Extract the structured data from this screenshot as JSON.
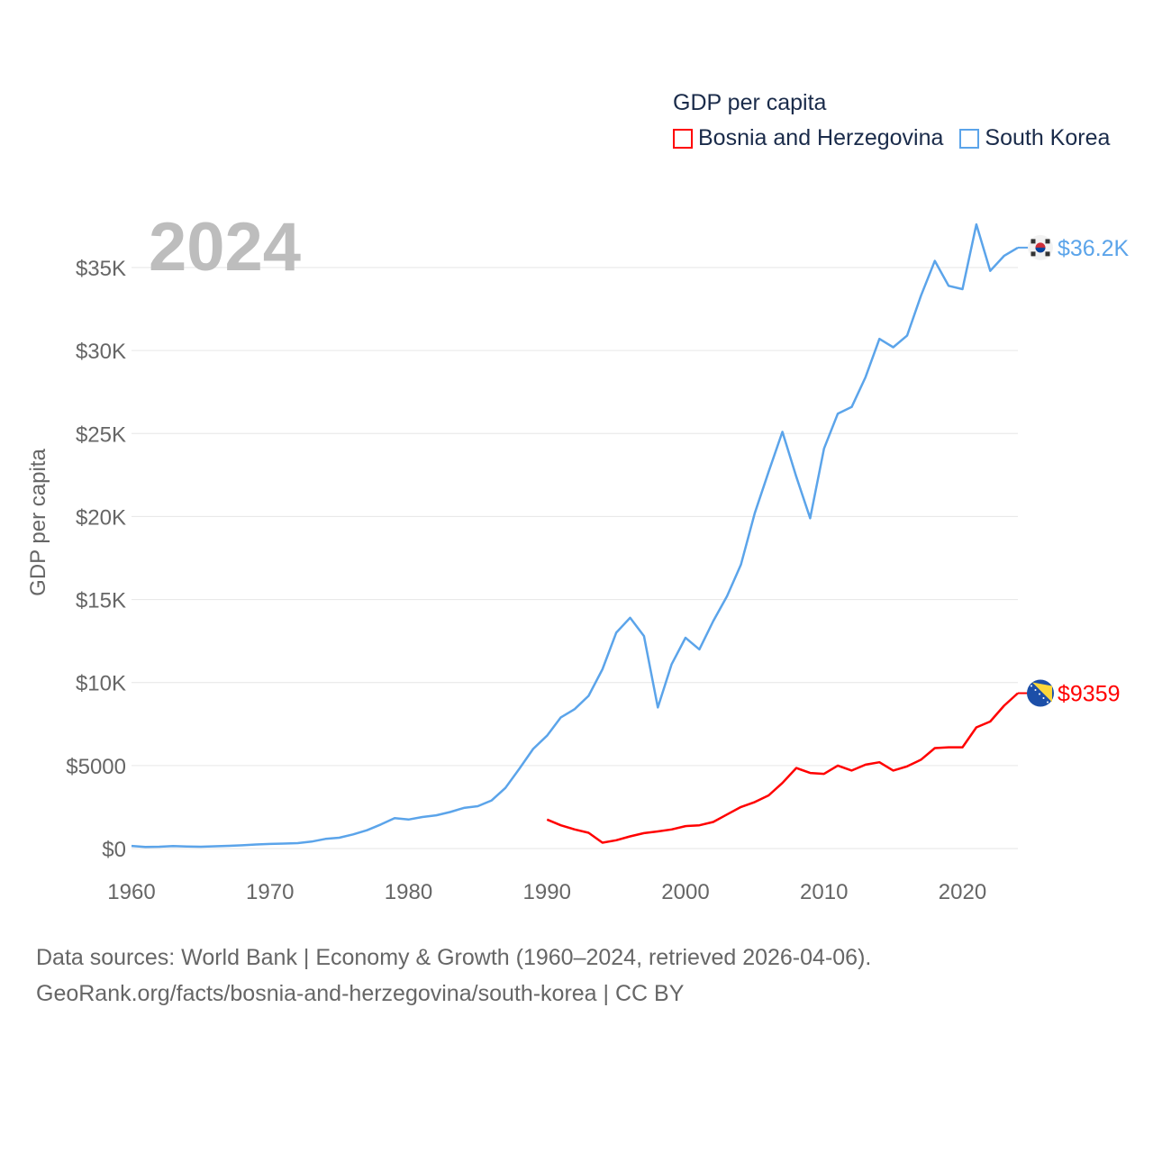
{
  "legend": {
    "title": "GDP per capita",
    "items": [
      {
        "label": "Bosnia and Herzegovina",
        "color": "#ff0000"
      },
      {
        "label": "South Korea",
        "color": "#5ba4ea"
      }
    ]
  },
  "year_label": "2024",
  "footer": {
    "line1": "Data sources: World Bank | Economy & Growth (1960–2024, retrieved 2026-04-06).",
    "line2": "GeoRank.org/facts/bosnia-and-herzegovina/south-korea | CC BY"
  },
  "chart_data": {
    "type": "line",
    "title": "GDP per capita",
    "xlabel": "",
    "ylabel": "GDP per capita",
    "xlim": [
      1960,
      2024
    ],
    "ylim": [
      0,
      35000
    ],
    "grid": true,
    "legend_position": "top-right",
    "x_ticks": [
      "1960",
      "1970",
      "1980",
      "1990",
      "2000",
      "2010",
      "2020"
    ],
    "y_ticks": [
      {
        "value": 0,
        "label": "$0"
      },
      {
        "value": 5000,
        "label": "$5000"
      },
      {
        "value": 10000,
        "label": "$10K"
      },
      {
        "value": 15000,
        "label": "$15K"
      },
      {
        "value": 20000,
        "label": "$20K"
      },
      {
        "value": 25000,
        "label": "$25K"
      },
      {
        "value": 30000,
        "label": "$30K"
      },
      {
        "value": 35000,
        "label": "$35K"
      }
    ],
    "series": [
      {
        "name": "South Korea",
        "color": "#5ba4ea",
        "end_label": "$36.2K",
        "x_start": 1960,
        "values": [
          158,
          94,
          106,
          146,
          123,
          108,
          133,
          161,
          198,
          243,
          279,
          301,
          324,
          420,
          580,
          650,
          850,
          1100,
          1450,
          1830,
          1750,
          1900,
          2000,
          2200,
          2450,
          2550,
          2900,
          3650,
          4800,
          6000,
          6800,
          7900,
          8400,
          9200,
          10800,
          13000,
          13900,
          12800,
          8500,
          11100,
          12700,
          12000,
          13700,
          15200,
          17100,
          20200,
          22700,
          25100,
          22400,
          19900,
          24100,
          26200,
          26600,
          28400,
          30700,
          30200,
          30900,
          33300,
          35400,
          33900,
          33700,
          37600,
          34800,
          35700,
          36200
        ]
      },
      {
        "name": "Bosnia and Herzegovina",
        "color": "#ff0000",
        "end_label": "$9359",
        "x_start": 1990,
        "values": [
          1750,
          1400,
          1150,
          950,
          350,
          500,
          730,
          930,
          1030,
          1150,
          1350,
          1400,
          1600,
          2050,
          2500,
          2800,
          3200,
          3950,
          4850,
          4550,
          4500,
          5000,
          4700,
          5050,
          5200,
          4700,
          4950,
          5350,
          6050,
          6100,
          6100,
          7300,
          7650,
          8600,
          9359
        ]
      }
    ]
  }
}
